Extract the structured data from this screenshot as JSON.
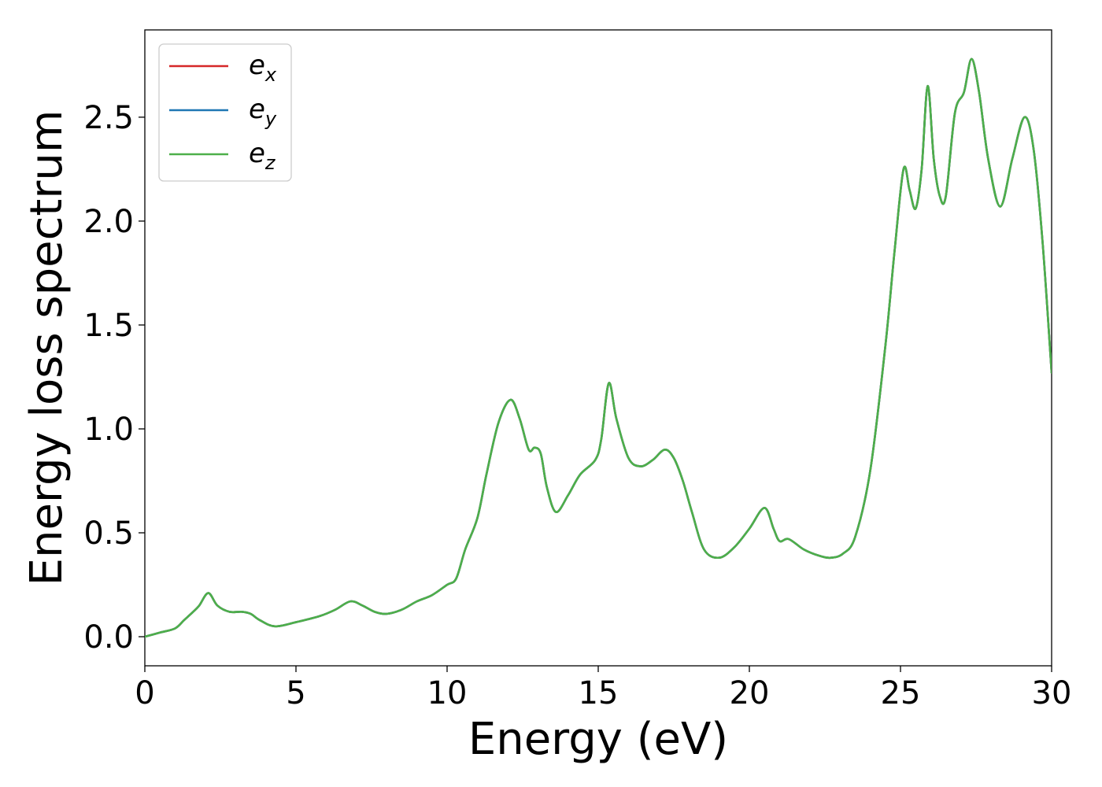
{
  "chart_data": {
    "type": "line",
    "title": "",
    "xlabel": "Energy (eV)",
    "ylabel": "Energy loss spectrum",
    "xlim": [
      0,
      30
    ],
    "ylim": [
      -0.14,
      2.92
    ],
    "xticks": [
      0,
      5,
      10,
      15,
      20,
      25,
      30
    ],
    "yticks": [
      0.0,
      0.5,
      1.0,
      1.5,
      2.0,
      2.5
    ],
    "xtick_labels": [
      "0",
      "5",
      "10",
      "15",
      "20",
      "25",
      "30"
    ],
    "ytick_labels": [
      "0.0",
      "0.5",
      "1.0",
      "1.5",
      "2.0",
      "2.5"
    ],
    "grid": false,
    "legend_position": "top-left",
    "colors": {
      "ex": "#d62728",
      "ey": "#1f77b4",
      "ez": "#4daf4a"
    },
    "x": [
      0,
      0.5,
      1.0,
      1.3,
      1.6,
      1.8,
      2.1,
      2.4,
      2.8,
      3.2,
      3.5,
      3.8,
      4.3,
      5.0,
      5.8,
      6.3,
      6.8,
      7.2,
      7.6,
      8.0,
      8.5,
      9.0,
      9.5,
      10.0,
      10.3,
      10.6,
      11.0,
      11.3,
      11.7,
      12.1,
      12.4,
      12.7,
      12.9,
      13.1,
      13.3,
      13.6,
      14.0,
      14.4,
      14.9,
      15.1,
      15.35,
      15.6,
      16.0,
      16.4,
      16.8,
      17.2,
      17.5,
      17.8,
      18.1,
      18.5,
      19.0,
      19.5,
      20.0,
      20.5,
      20.8,
      21.0,
      21.3,
      21.8,
      22.3,
      22.7,
      23.1,
      23.5,
      24.0,
      24.5,
      24.8,
      25.1,
      25.3,
      25.5,
      25.7,
      25.9,
      26.1,
      26.3,
      26.5,
      26.8,
      27.1,
      27.35,
      27.6,
      27.9,
      28.3,
      28.7,
      29.1,
      29.4,
      29.7,
      30.0
    ],
    "series": [
      {
        "name": "e_x",
        "values": [
          0.0,
          0.02,
          0.04,
          0.08,
          0.12,
          0.15,
          0.21,
          0.15,
          0.12,
          0.12,
          0.11,
          0.08,
          0.05,
          0.07,
          0.1,
          0.13,
          0.17,
          0.15,
          0.12,
          0.11,
          0.13,
          0.17,
          0.2,
          0.25,
          0.28,
          0.42,
          0.57,
          0.78,
          1.03,
          1.14,
          1.05,
          0.9,
          0.91,
          0.88,
          0.72,
          0.6,
          0.68,
          0.78,
          0.85,
          0.95,
          1.22,
          1.05,
          0.86,
          0.82,
          0.85,
          0.9,
          0.86,
          0.75,
          0.6,
          0.42,
          0.38,
          0.43,
          0.52,
          0.62,
          0.52,
          0.46,
          0.47,
          0.42,
          0.39,
          0.38,
          0.4,
          0.48,
          0.8,
          1.4,
          1.85,
          2.25,
          2.15,
          2.06,
          2.25,
          2.65,
          2.3,
          2.12,
          2.12,
          2.52,
          2.62,
          2.78,
          2.62,
          2.3,
          2.07,
          2.3,
          2.5,
          2.35,
          1.9,
          1.27
        ]
      },
      {
        "name": "e_y",
        "values": [
          0.0,
          0.02,
          0.04,
          0.08,
          0.12,
          0.15,
          0.21,
          0.15,
          0.12,
          0.12,
          0.11,
          0.08,
          0.05,
          0.07,
          0.1,
          0.13,
          0.17,
          0.15,
          0.12,
          0.11,
          0.13,
          0.17,
          0.2,
          0.25,
          0.28,
          0.42,
          0.57,
          0.78,
          1.03,
          1.14,
          1.05,
          0.9,
          0.91,
          0.88,
          0.72,
          0.6,
          0.68,
          0.78,
          0.85,
          0.95,
          1.22,
          1.05,
          0.86,
          0.82,
          0.85,
          0.9,
          0.86,
          0.75,
          0.6,
          0.42,
          0.38,
          0.43,
          0.52,
          0.62,
          0.52,
          0.46,
          0.47,
          0.42,
          0.39,
          0.38,
          0.4,
          0.48,
          0.8,
          1.4,
          1.85,
          2.25,
          2.15,
          2.06,
          2.25,
          2.65,
          2.3,
          2.12,
          2.12,
          2.52,
          2.62,
          2.78,
          2.62,
          2.3,
          2.07,
          2.3,
          2.5,
          2.35,
          1.9,
          1.27
        ]
      },
      {
        "name": "e_z",
        "values": [
          0.0,
          0.02,
          0.04,
          0.08,
          0.12,
          0.15,
          0.21,
          0.15,
          0.12,
          0.12,
          0.11,
          0.08,
          0.05,
          0.07,
          0.1,
          0.13,
          0.17,
          0.15,
          0.12,
          0.11,
          0.13,
          0.17,
          0.2,
          0.25,
          0.28,
          0.42,
          0.57,
          0.78,
          1.03,
          1.14,
          1.05,
          0.9,
          0.91,
          0.88,
          0.72,
          0.6,
          0.68,
          0.78,
          0.85,
          0.95,
          1.22,
          1.05,
          0.86,
          0.82,
          0.85,
          0.9,
          0.86,
          0.75,
          0.6,
          0.42,
          0.38,
          0.43,
          0.52,
          0.62,
          0.52,
          0.46,
          0.47,
          0.42,
          0.39,
          0.38,
          0.4,
          0.48,
          0.8,
          1.4,
          1.85,
          2.25,
          2.15,
          2.06,
          2.25,
          2.65,
          2.3,
          2.12,
          2.12,
          2.52,
          2.62,
          2.78,
          2.62,
          2.3,
          2.07,
          2.3,
          2.5,
          2.35,
          1.9,
          1.27
        ]
      }
    ],
    "legend": [
      {
        "base": "e",
        "sub": "x"
      },
      {
        "base": "e",
        "sub": "y"
      },
      {
        "base": "e",
        "sub": "z"
      }
    ]
  }
}
